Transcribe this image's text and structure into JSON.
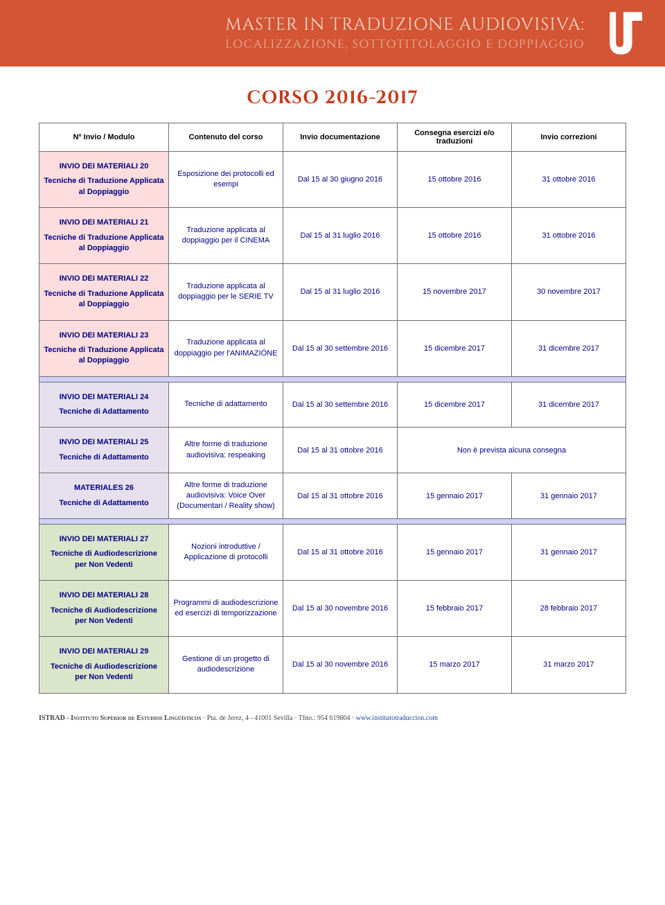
{
  "header": {
    "title": "MASTER IN TRADUZIONE AUDIOVISIVA:",
    "subtitle": "LOCALIZZAZIONE, SOTTOTITOLAGGIO E DOPPIAGGIO"
  },
  "page": {
    "corso_title": "CORSO 2016-2017"
  },
  "columns": {
    "c0": "Nº Invio / Modulo",
    "c1": "Contenuto del corso",
    "c2": "Invio documentazione",
    "c3": "Consegna esercizi e/o traduzioni",
    "c4": "Invio correzioni"
  },
  "colors": {
    "pink": "#fddddd",
    "lav": "#e6e0ee",
    "green": "#dbe5ca"
  },
  "rows": [
    {
      "bg": "pink",
      "mod": "INVIO DEI MATERIALI 20",
      "sub": "Tecniche di Traduzione Applicata al Doppiaggio",
      "content": "Esposizione dei protocolli ed esempi",
      "doc": "Dal 15 al 30 giugno 2016",
      "date": "15 ottobre 2016",
      "corr": "31 ottobre 2016"
    },
    {
      "bg": "pink",
      "mod": "INVIO DEI MATERIALI 21",
      "sub": "Tecniche di Traduzione Applicata al Doppiaggio",
      "content": "Traduzione applicata al doppiaggio per il CINEMA",
      "doc": "Dal 15 al 31 luglio 2016",
      "date": "15 ottobre 2016",
      "corr": "31 ottobre 2016"
    },
    {
      "bg": "pink",
      "mod": "INVIO DEI MATERIALI 22",
      "sub": "Tecniche di Traduzione Applicata al Doppiaggio",
      "content": "Traduzione applicata al doppiaggio per le SERIE TV",
      "doc": "Dal 15 al 31 luglio 2016",
      "date": "15 novembre 2017",
      "corr": "30 novembre 2017"
    },
    {
      "bg": "pink",
      "mod": "INVIO DEI MATERIALI 23",
      "sub": "Tecniche di Traduzione Applicata al Doppiaggio",
      "content": "Traduzione applicata al doppiaggio per l'ANIMAZIÓNE",
      "doc": "Dal 15 al 30 settembre 2016",
      "date": "15 dicembre 2017",
      "corr": "31 dicembre 2017"
    }
  ],
  "rows2": [
    {
      "bg": "lav",
      "mod": "INVIO DEI MATERIALI 24",
      "sub": "Tecniche di Adattamento",
      "content": "Tecniche di adattamento",
      "doc": "Dal 15 al 30 settembre 2016",
      "date": "15 dicembre 2017",
      "corr": "31 dicembre 2017"
    },
    {
      "bg": "lav",
      "mod": "INVIO DEI MATERIALI 25",
      "sub": "Tecniche di Adattamento",
      "content": "Altre forme di traduzione audiovisiva: respeaking",
      "doc": "Dal 15 al 31 ottobre 2016",
      "merged": "Non è prevista alcuna consegna"
    },
    {
      "bg": "lav",
      "mod": "MATERIALES 26",
      "sub": "Tecniche di Adattamento",
      "content": "Altre forme di traduzione audiovisiva: Voice Over (Documentari / Reality show)",
      "doc": "Dal 15 al 31 ottobre 2016",
      "date": "15 gennaio 2017",
      "corr": "31 gennaio 2017"
    }
  ],
  "rows3": [
    {
      "bg": "green",
      "mod": "INVIO DEI MATERIALI 27",
      "sub": "Tecniche di Audiodescrizione per Non Vedenti",
      "content": "Nozioni introduttive / Applicazione di protocolli",
      "doc": "Dal 15 al 31 ottobre 2016",
      "date": "15 gennaio 2017",
      "corr": "31 gennaio 2017"
    },
    {
      "bg": "green",
      "mod": "INVIO DEI MATERIALI 28",
      "sub": "Tecniche di Audiodescrizione per Non Vedenti",
      "content": "Programmi di audiodescrizione ed esercizi di temporizzazione",
      "doc": "Dal 15 al 30 novembre 2016",
      "date": "15 febbraio 2017",
      "corr": "28 febbraio 2017"
    },
    {
      "bg": "green",
      "mod": "INVIO DEI MATERIALI 29",
      "sub": "Tecniche di Audiodescrizione per Non Vedenti",
      "content": "Gestione di un progetto di audiodescrizione",
      "doc": "Dal 15 al 30 novembre 2016",
      "date": "15 marzo 2017",
      "corr": "31 marzo 2017"
    }
  ],
  "footer": {
    "istrad": "ISTRAD - Instituto Superior de Estudios Lingüísticos",
    "address": "  ·  Pta. de Jerez, 4 - 41001 Sevilla  ·  Tfno.: 954 619804  ·  ",
    "url": "www.institutotraduccion.com"
  }
}
